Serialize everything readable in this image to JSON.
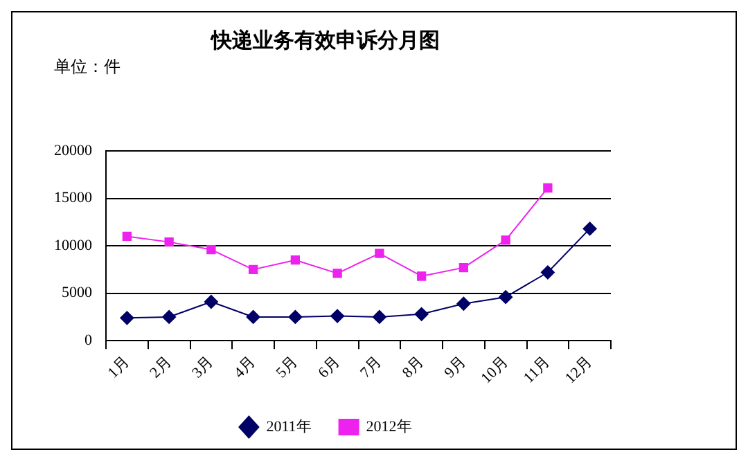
{
  "chart_data": {
    "type": "line",
    "title": "快递业务有效申诉分月图",
    "annotations": [
      "单位：件"
    ],
    "categories": [
      "1月",
      "2月",
      "3月",
      "4月",
      "5月",
      "6月",
      "7月",
      "8月",
      "9月",
      "10月",
      "11月",
      "12月"
    ],
    "series": [
      {
        "name": "2011年",
        "color": "#000066",
        "marker": "diamond",
        "values": [
          2400,
          2500,
          4100,
          2500,
          2500,
          2600,
          2500,
          2800,
          3900,
          4600,
          7200,
          11800
        ]
      },
      {
        "name": "2012年",
        "color": "#ee22ee",
        "marker": "square",
        "values": [
          11000,
          10400,
          9600,
          7500,
          8500,
          7100,
          9200,
          6800,
          7700,
          10600,
          16100,
          null
        ]
      }
    ],
    "ylim": [
      0,
      20000
    ],
    "yticks": [
      0,
      5000,
      10000,
      15000,
      20000
    ],
    "grid": "y",
    "legend": "bottom",
    "line_style": "solid"
  }
}
